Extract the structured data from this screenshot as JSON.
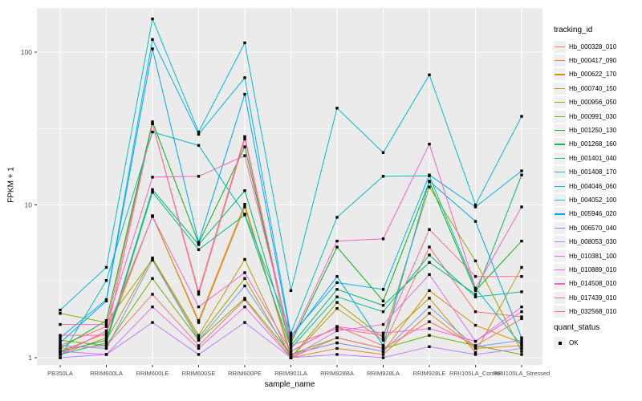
{
  "figure": {
    "background": "#FFFFFF",
    "panel_background": "#EBEBEB",
    "grid_color": "#FFFFFF",
    "tick_text_color": "#4D4D4D",
    "point_color": "#000000"
  },
  "axes": {
    "x": {
      "label": "sample_name",
      "categories": [
        "PB350LA",
        "RRIM600LA",
        "RRIM600LE",
        "RRIM600SE",
        "RRIM600PE",
        "RRIM901LA",
        "RRIM928BA",
        "RRIM928LA",
        "RRIM928LE",
        "RRII105LA_Control",
        "RRII105LA_Stressed"
      ]
    },
    "y": {
      "label": "FPKM + 1",
      "scale": "log10",
      "tick_labels": [
        "100",
        "10",
        "1"
      ],
      "tick_values": [
        100,
        10,
        1
      ],
      "minor_tick_values": [
        3.1623,
        31.623
      ]
    }
  },
  "legend": {
    "tracking_title": "tracking_id",
    "quant_title": "quant_status",
    "quant_items": [
      {
        "label": "OK",
        "marker": "black-square"
      }
    ],
    "items": [
      {
        "label": "Hb_000328_010",
        "color": "#F8766D"
      },
      {
        "label": "Hb_000417_090",
        "color": "#E9842C"
      },
      {
        "label": "Hb_000622_170",
        "color": "#D69100"
      },
      {
        "label": "Hb_000740_150",
        "color": "#BC9D00"
      },
      {
        "label": "Hb_000956_050",
        "color": "#9CA700"
      },
      {
        "label": "Hb_000991_030",
        "color": "#6FB000"
      },
      {
        "label": "Hb_001250_130",
        "color": "#00B813"
      },
      {
        "label": "Hb_001268_160",
        "color": "#00BD61"
      },
      {
        "label": "Hb_001401_040",
        "color": "#00C08E"
      },
      {
        "label": "Hb_001408_170",
        "color": "#00C0B4"
      },
      {
        "label": "Hb_004046_060",
        "color": "#00BDD4"
      },
      {
        "label": "Hb_004052_100",
        "color": "#00B5EC"
      },
      {
        "label": "Hb_005946_020",
        "color": "#00A7FF"
      },
      {
        "label": "Hb_006570_040",
        "color": "#7F96FF"
      },
      {
        "label": "Hb_008053_030",
        "color": "#BC81FF"
      },
      {
        "label": "Hb_010381_100",
        "color": "#E26EF7"
      },
      {
        "label": "Hb_010889_010",
        "color": "#F863DF"
      },
      {
        "label": "Hb_014508_010",
        "color": "#FF62BF"
      },
      {
        "label": "Hb_017439_010",
        "color": "#FF6A9A"
      },
      {
        "label": "Hb_032568_010",
        "color": "#FC7571"
      }
    ]
  },
  "chart_data": {
    "type": "line",
    "title": "",
    "xlabel": "sample_name",
    "ylabel": "FPKM + 1",
    "y_scale": "log10",
    "ylim": [
      0.9,
      195
    ],
    "grid": true,
    "legend_position": "right",
    "point_marker": "black-square",
    "categories": [
      "PB350LA",
      "RRIM600LA",
      "RRIM600LE",
      "RRIM600SE",
      "RRIM600PE",
      "RRIM901LA",
      "RRIM928BA",
      "RRIM928LA",
      "RRIM928LE",
      "RRII105LA_Control",
      "RRII105LA_Stressed"
    ],
    "series": [
      {
        "name": "Hb_000328_010",
        "color": "#F8766D",
        "values": [
          1.2,
          1.6,
          34,
          2.6,
          27,
          1.1,
          1.6,
          1.2,
          5.3,
          2.0,
          1.85
        ]
      },
      {
        "name": "Hb_000417_090",
        "color": "#E9842C",
        "values": [
          1.1,
          1.45,
          8.4,
          1.75,
          10.1,
          1.0,
          1.15,
          1.05,
          1.95,
          1.15,
          1.2
        ]
      },
      {
        "name": "Hb_000622_170",
        "color": "#D69100",
        "values": [
          1.05,
          1.35,
          8.5,
          1.7,
          9.7,
          1.05,
          1.25,
          1.1,
          2.75,
          1.63,
          1.25
        ]
      },
      {
        "name": "Hb_000740_150",
        "color": "#BC9D00",
        "values": [
          1.1,
          1.3,
          4.5,
          1.4,
          4.4,
          1.0,
          2.1,
          1.3,
          2.45,
          1.08,
          3.9
        ]
      },
      {
        "name": "Hb_000956_050",
        "color": "#9CA700",
        "values": [
          1.95,
          1.7,
          4.4,
          1.35,
          3.3,
          1.0,
          2.3,
          1.35,
          13.1,
          4.3,
          1.1
        ]
      },
      {
        "name": "Hb_000991_030",
        "color": "#6FB000",
        "values": [
          1.3,
          1.2,
          3.3,
          1.3,
          2.45,
          1.05,
          1.35,
          1.15,
          1.4,
          1.2,
          1.05
        ]
      },
      {
        "name": "Hb_001250_130",
        "color": "#00B813",
        "values": [
          1.15,
          1.75,
          35,
          5.6,
          24,
          1.25,
          5.3,
          2.35,
          14.2,
          2.75,
          5.8
        ]
      },
      {
        "name": "Hb_001268_160",
        "color": "#00BD61",
        "values": [
          1.1,
          1.3,
          12.6,
          5.5,
          12.4,
          1.2,
          2.8,
          2.2,
          4.2,
          2.6,
          15.7
        ]
      },
      {
        "name": "Hb_001401_040",
        "color": "#00C08E",
        "values": [
          1.05,
          1.25,
          12.1,
          5.1,
          8.6,
          1.15,
          2.5,
          2.0,
          4.7,
          2.5,
          2.7
        ]
      },
      {
        "name": "Hb_001408_170",
        "color": "#00C0B4",
        "values": [
          1.0,
          3.2,
          30,
          24.5,
          8.7,
          1.45,
          8.3,
          15.4,
          15.5,
          2.85,
          1.2
        ]
      },
      {
        "name": "Hb_004046_060",
        "color": "#00BDD4",
        "values": [
          2.05,
          3.9,
          165,
          30,
          115,
          2.75,
          43,
          22,
          71,
          10.0,
          38
        ]
      },
      {
        "name": "Hb_004052_100",
        "color": "#00B5EC",
        "values": [
          1.35,
          2.4,
          121,
          29,
          68,
          1.4,
          3.1,
          2.8,
          15.7,
          9.7,
          16.7
        ]
      },
      {
        "name": "Hb_005946_020",
        "color": "#00A7FF",
        "values": [
          1.25,
          2.35,
          105,
          5.7,
          53,
          1.35,
          3.4,
          1.2,
          14.3,
          7.8,
          1.35
        ]
      },
      {
        "name": "Hb_006570_040",
        "color": "#7F96FF",
        "values": [
          1.2,
          1.15,
          4.35,
          1.3,
          2.95,
          1.05,
          1.25,
          1.1,
          2.15,
          1.18,
          1.3
        ]
      },
      {
        "name": "Hb_008053_030",
        "color": "#BC81FF",
        "values": [
          1.0,
          1.05,
          1.7,
          1.05,
          1.7,
          1.0,
          1.05,
          1.0,
          1.18,
          1.05,
          1.15
        ]
      },
      {
        "name": "Hb_010381_100",
        "color": "#E26EF7",
        "values": [
          1.1,
          1.05,
          2.15,
          1.15,
          2.15,
          1.0,
          1.5,
          1.65,
          3.5,
          1.28,
          2.15
        ]
      },
      {
        "name": "Hb_010889_010",
        "color": "#F863DF",
        "values": [
          1.05,
          1.5,
          8.4,
          2.15,
          3.6,
          1.1,
          1.6,
          1.45,
          1.55,
          1.28,
          2.0
        ]
      },
      {
        "name": "Hb_014508_010",
        "color": "#FF62BF",
        "values": [
          1.65,
          1.65,
          15.2,
          15.4,
          21,
          1.3,
          5.8,
          6.0,
          25,
          2.85,
          9.7
        ]
      },
      {
        "name": "Hb_017439_010",
        "color": "#FF6A9A",
        "values": [
          1.4,
          1.4,
          34,
          2.7,
          28,
          1.2,
          1.55,
          1.4,
          6.9,
          3.4,
          3.4
        ]
      },
      {
        "name": "Hb_032568_010",
        "color": "#FC7571",
        "values": [
          1.15,
          1.2,
          2.6,
          1.2,
          2.4,
          1.0,
          1.35,
          1.15,
          1.72,
          1.2,
          1.8
        ]
      }
    ]
  }
}
